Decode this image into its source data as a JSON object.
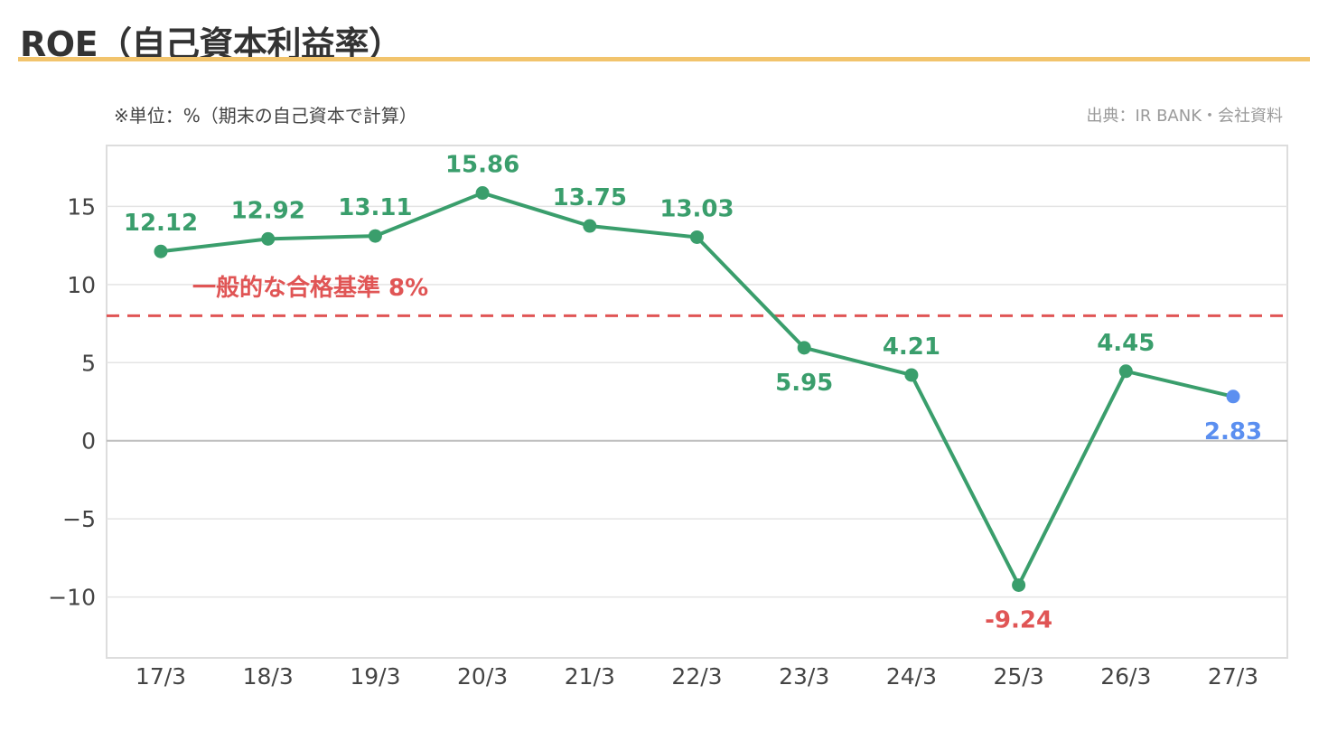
{
  "header": {
    "title": "ROE（自己資本利益率）",
    "unit_note": "※単位：%（期末の自己資本で計算）",
    "source": "出典：IR BANK・会社資料"
  },
  "colors": {
    "title_rule": "#f2c46d",
    "line": "#3a9e6c",
    "forecast_point": "#5b8ff0",
    "negative_label": "#e05555",
    "threshold": "#e05555",
    "grid": "#e4e4e4",
    "zero_line": "#bdbdbd"
  },
  "chart_data": {
    "type": "line",
    "categories": [
      "17/3",
      "18/3",
      "19/3",
      "20/3",
      "21/3",
      "22/3",
      "23/3",
      "24/3",
      "25/3",
      "26/3",
      "27/3"
    ],
    "series": [
      {
        "values": [
          12.12,
          12.92,
          13.11,
          15.86,
          13.75,
          13.03,
          5.95,
          4.21,
          -9.24,
          4.45,
          2.83
        ],
        "labels": [
          "12.12",
          "12.92",
          "13.11",
          "15.86",
          "13.75",
          "13.03",
          "5.95",
          "4.21",
          "-9.24",
          "4.45",
          "2.83"
        ],
        "label_positions": [
          "above",
          "above",
          "above",
          "above",
          "above",
          "above",
          "below",
          "above",
          "below",
          "above",
          "below"
        ],
        "highlight_last_point": true
      }
    ],
    "yticks": [
      15,
      10,
      5,
      0,
      -5,
      -10
    ],
    "ytick_labels": [
      "15",
      "10",
      "5",
      "0",
      "−5",
      "−10"
    ],
    "ylim": [
      -13.9,
      18.9
    ],
    "threshold": {
      "value": 8,
      "label": "一般的な合格基準 8%",
      "style": "dashed"
    },
    "grid": true,
    "xlabel": "",
    "ylabel": ""
  }
}
